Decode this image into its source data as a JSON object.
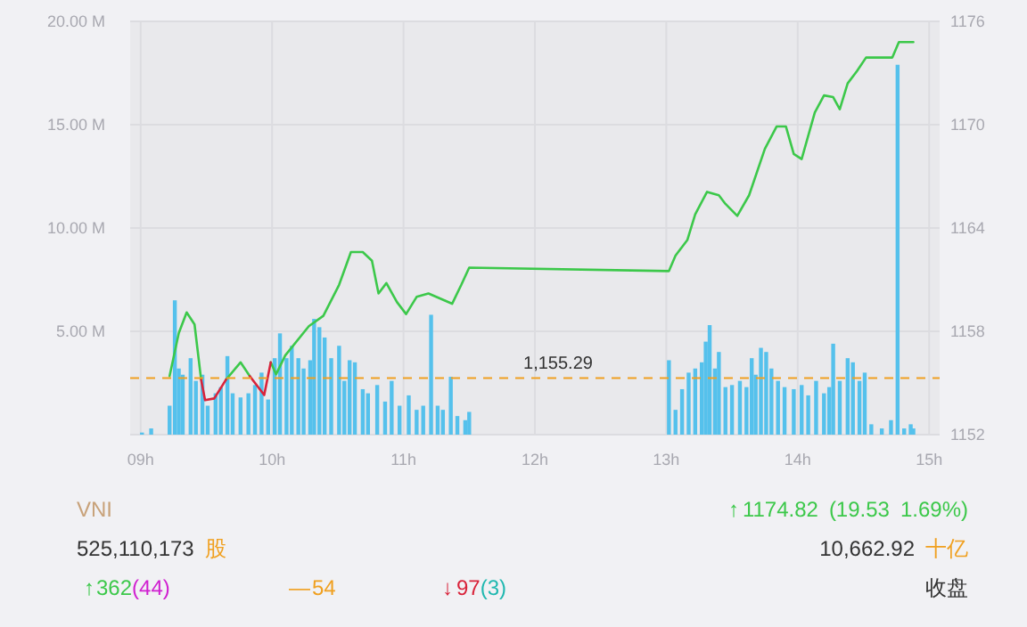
{
  "chart_data": {
    "type": "bar",
    "xlim": [
      8.92,
      15.08
    ],
    "xticks": [
      {
        "value": 9,
        "label": "09h"
      },
      {
        "value": 10,
        "label": "10h"
      },
      {
        "value": 11,
        "label": "11h"
      },
      {
        "value": 12,
        "label": "12h"
      },
      {
        "value": 13,
        "label": "13h"
      },
      {
        "value": 14,
        "label": "14h"
      },
      {
        "value": 15,
        "label": "15h"
      }
    ],
    "ylim": [
      0,
      20
    ],
    "yticks": [
      {
        "value": 0,
        "label": null
      },
      {
        "value": 5,
        "label": "5.00 M"
      },
      {
        "value": 10,
        "label": "10.00 M"
      },
      {
        "value": 15,
        "label": "15.00 M"
      },
      {
        "value": 20,
        "label": "20.00 M"
      }
    ],
    "y2lim": [
      1152,
      1176
    ],
    "y2ticks": [
      1152,
      1158,
      1164,
      1170,
      1176
    ],
    "grid": true,
    "series": [
      {
        "axis": "y",
        "color": "#55c1ec",
        "x": [
          9.01,
          9.08,
          9.22,
          9.26,
          9.29,
          9.32,
          9.38,
          9.42,
          9.47,
          9.51,
          9.57,
          9.61,
          9.66,
          9.7,
          9.76,
          9.82,
          9.87,
          9.92,
          9.97,
          10.02,
          10.06,
          10.11,
          10.15,
          10.2,
          10.24,
          10.29,
          10.32,
          10.36,
          10.4,
          10.45,
          10.51,
          10.55,
          10.59,
          10.63,
          10.69,
          10.73,
          10.8,
          10.86,
          10.91,
          10.97,
          11.04,
          11.1,
          11.15,
          11.21,
          11.26,
          11.3,
          11.36,
          11.41,
          11.47,
          11.5,
          13.02,
          13.07,
          13.12,
          13.17,
          13.22,
          13.27,
          13.3,
          13.33,
          13.37,
          13.4,
          13.45,
          13.5,
          13.56,
          13.61,
          13.65,
          13.68,
          13.72,
          13.76,
          13.8,
          13.85,
          13.9,
          13.97,
          14.03,
          14.08,
          14.14,
          14.2,
          14.24,
          14.27,
          14.32,
          14.38,
          14.42,
          14.47,
          14.51,
          14.56,
          14.64,
          14.71,
          14.76,
          14.81,
          14.86,
          14.88
        ],
        "values": [
          0.1,
          0.3,
          1.4,
          6.5,
          3.2,
          2.9,
          3.7,
          2.6,
          2.9,
          1.4,
          2.0,
          2.3,
          3.8,
          2.0,
          1.8,
          2.0,
          2.4,
          3.0,
          1.7,
          3.7,
          4.9,
          3.7,
          4.3,
          3.7,
          3.2,
          3.6,
          5.6,
          5.2,
          4.7,
          3.7,
          4.3,
          2.6,
          3.6,
          3.5,
          2.2,
          2.0,
          2.4,
          1.6,
          2.6,
          1.4,
          1.9,
          1.2,
          1.4,
          5.8,
          1.4,
          1.2,
          2.8,
          0.9,
          0.7,
          1.1,
          3.6,
          1.2,
          2.2,
          3.0,
          3.2,
          3.5,
          4.5,
          5.3,
          3.2,
          4.0,
          2.3,
          2.4,
          2.6,
          2.3,
          3.7,
          2.9,
          4.2,
          4.0,
          3.2,
          2.6,
          2.3,
          2.2,
          2.4,
          1.9,
          2.6,
          2.0,
          2.3,
          4.4,
          2.6,
          3.7,
          3.5,
          2.6,
          3.0,
          0.5,
          0.3,
          0.7,
          17.9,
          0.3,
          0.5,
          0.3
        ]
      },
      {
        "type": "line",
        "axis": "y2",
        "color": "#3cc84a",
        "x": [
          9.22,
          9.29,
          9.35,
          9.41,
          9.46,
          9.48,
          9.65,
          9.76,
          9.83,
          9.86,
          9.99,
          10.03,
          10.1,
          10.28,
          10.39,
          10.51,
          10.6,
          10.69,
          10.76,
          10.81,
          10.87,
          10.95,
          11.02,
          11.1,
          11.19,
          11.28,
          11.37,
          11.44,
          11.5,
          13.02,
          13.07,
          13.16,
          13.22,
          13.31,
          13.4,
          13.45,
          13.54,
          13.63,
          13.75,
          13.84,
          13.91,
          13.97,
          14.03,
          14.13,
          14.2,
          14.27,
          14.32,
          14.38,
          14.45,
          14.52,
          14.72,
          14.77,
          14.88
        ],
        "values": [
          1155.4,
          1157.9,
          1159.1,
          1158.4,
          1155.2,
          null,
          1155.2,
          1156.2,
          1155.4,
          null,
          1156.2,
          1155.5,
          1156.6,
          1158.3,
          1158.9,
          1160.7,
          1162.6,
          1162.6,
          1162.1,
          1160.2,
          1160.8,
          1159.7,
          1159.0,
          1160.0,
          1160.2,
          1159.9,
          1159.6,
          1160.7,
          1161.7,
          1161.5,
          1162.4,
          1163.3,
          1164.8,
          1166.1,
          1165.9,
          1165.4,
          1164.7,
          1165.9,
          1168.6,
          1169.9,
          1169.9,
          1168.3,
          1168.0,
          1170.7,
          1171.7,
          1171.6,
          1170.9,
          1172.4,
          1173.1,
          1173.9,
          1173.9,
          1174.8,
          1174.8
        ]
      },
      {
        "type": "line",
        "axis": "y2",
        "color": "#d9233a",
        "x": [
          9.46,
          9.49,
          9.56,
          9.65,
          9.7,
          9.83,
          9.94,
          9.99
        ],
        "values": [
          1155.2,
          1154.0,
          1154.1,
          1155.2,
          null,
          1155.4,
          1154.3,
          1156.2
        ]
      }
    ],
    "ref_lines": [
      {
        "axis": "y2",
        "value": 1155.29,
        "label": "1,155.29",
        "color": "#f0a020",
        "line_style": "dashed"
      }
    ],
    "annotations": [
      "VNI",
      "↑",
      "1174.82",
      "(19.53",
      "1.69%)",
      "525,110,173",
      "股",
      "10,662.92",
      "十亿",
      "↑",
      "362",
      "(44)",
      "—",
      "54",
      "↓",
      "97",
      "(3)",
      "收盘"
    ]
  }
}
